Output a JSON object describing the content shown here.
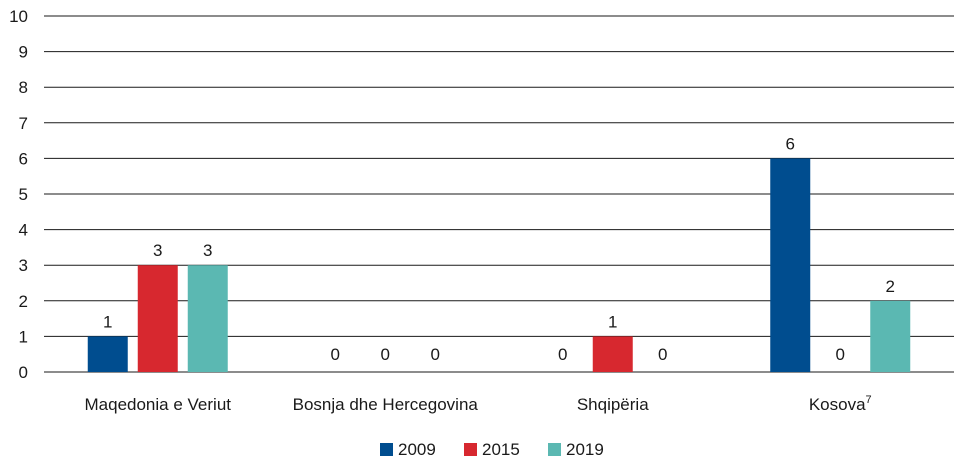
{
  "chart_data": {
    "type": "bar",
    "title": "",
    "xlabel": "",
    "ylabel": "",
    "ylim": [
      0,
      10
    ],
    "yticks": [
      0,
      1,
      2,
      3,
      4,
      5,
      6,
      7,
      8,
      9,
      10
    ],
    "grid": true,
    "legend_position": "bottom",
    "categories": [
      {
        "label": "Maqedonia e Veriut",
        "sup": ""
      },
      {
        "label": "Bosnja dhe Hercegovina",
        "sup": ""
      },
      {
        "label": "Shqipëria",
        "sup": ""
      },
      {
        "label": "Kosova",
        "sup": "7"
      }
    ],
    "series": [
      {
        "name": "2009",
        "color": "#004d8f",
        "values": [
          1,
          0,
          0,
          6
        ]
      },
      {
        "name": "2015",
        "color": "#d7282f",
        "values": [
          3,
          0,
          1,
          0
        ]
      },
      {
        "name": "2019",
        "color": "#5bb8b2",
        "values": [
          3,
          0,
          0,
          2
        ]
      }
    ]
  }
}
